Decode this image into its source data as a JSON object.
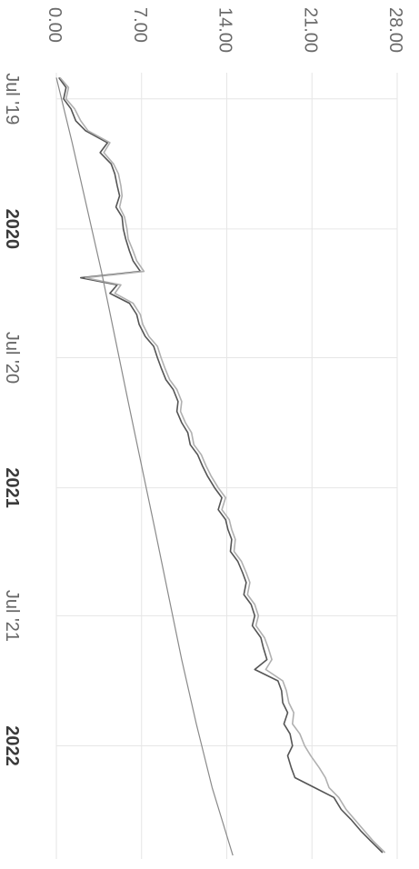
{
  "chart_data": {
    "type": "line",
    "orientation": "rotated-90-clockwise",
    "x_ticks": [
      {
        "date": "2019-07-01",
        "label": "Jul '19",
        "bold": false
      },
      {
        "date": "2020-01-01",
        "label": "2020",
        "bold": true
      },
      {
        "date": "2020-07-01",
        "label": "Jul '20",
        "bold": false
      },
      {
        "date": "2021-01-01",
        "label": "2021",
        "bold": true
      },
      {
        "date": "2021-07-01",
        "label": "Jul '21",
        "bold": false
      },
      {
        "date": "2022-01-01",
        "label": "2022",
        "bold": true
      }
    ],
    "y_ticks": [
      "0.00",
      "7.00",
      "14.00",
      "21.00",
      "28.00"
    ],
    "xlim": [
      "2019-05-25",
      "2022-06-10"
    ],
    "ylim": [
      0,
      28
    ],
    "grid": true,
    "series": [
      {
        "color": "#555555",
        "points": [
          [
            "2019-06-01",
            0.2
          ],
          [
            "2019-06-15",
            0.8
          ],
          [
            "2019-07-01",
            0.6
          ],
          [
            "2019-07-15",
            1.2
          ],
          [
            "2019-08-01",
            1.6
          ],
          [
            "2019-08-15",
            2.4
          ],
          [
            "2019-09-01",
            4.2
          ],
          [
            "2019-09-15",
            3.6
          ],
          [
            "2019-10-01",
            4.5
          ],
          [
            "2019-10-15",
            4.8
          ],
          [
            "2019-11-01",
            5.0
          ],
          [
            "2019-11-15",
            5.2
          ],
          [
            "2019-12-01",
            4.9
          ],
          [
            "2019-12-15",
            5.4
          ],
          [
            "2020-01-01",
            5.5
          ],
          [
            "2020-01-15",
            5.7
          ],
          [
            "2020-02-01",
            6.0
          ],
          [
            "2020-02-15",
            6.3
          ],
          [
            "2020-03-01",
            6.9
          ],
          [
            "2020-03-10",
            2.0
          ],
          [
            "2020-03-20",
            5.0
          ],
          [
            "2020-04-01",
            4.4
          ],
          [
            "2020-04-15",
            6.0
          ],
          [
            "2020-05-01",
            6.6
          ],
          [
            "2020-05-15",
            6.8
          ],
          [
            "2020-06-01",
            7.3
          ],
          [
            "2020-06-15",
            8.0
          ],
          [
            "2020-07-01",
            8.3
          ],
          [
            "2020-07-15",
            8.6
          ],
          [
            "2020-08-01",
            9.0
          ],
          [
            "2020-08-15",
            9.6
          ],
          [
            "2020-09-01",
            10.0
          ],
          [
            "2020-09-15",
            9.9
          ],
          [
            "2020-10-01",
            10.3
          ],
          [
            "2020-10-15",
            10.8
          ],
          [
            "2020-11-01",
            11.0
          ],
          [
            "2020-11-15",
            11.6
          ],
          [
            "2020-12-01",
            12.0
          ],
          [
            "2020-12-15",
            12.4
          ],
          [
            "2021-01-01",
            13.0
          ],
          [
            "2021-01-15",
            13.6
          ],
          [
            "2021-02-01",
            13.3
          ],
          [
            "2021-02-15",
            13.9
          ],
          [
            "2021-03-01",
            14.1
          ],
          [
            "2021-03-15",
            14.4
          ],
          [
            "2021-04-01",
            14.3
          ],
          [
            "2021-04-15",
            14.9
          ],
          [
            "2021-05-01",
            15.3
          ],
          [
            "2021-05-15",
            15.6
          ],
          [
            "2021-06-01",
            15.4
          ],
          [
            "2021-06-15",
            16.0
          ],
          [
            "2021-07-01",
            16.3
          ],
          [
            "2021-07-15",
            16.1
          ],
          [
            "2021-08-01",
            16.8
          ],
          [
            "2021-08-15",
            17.0
          ],
          [
            "2021-09-01",
            17.3
          ],
          [
            "2021-09-15",
            16.3
          ],
          [
            "2021-10-01",
            18.2
          ],
          [
            "2021-10-15",
            18.5
          ],
          [
            "2021-11-01",
            18.6
          ],
          [
            "2021-11-15",
            19.0
          ],
          [
            "2021-12-01",
            18.7
          ],
          [
            "2021-12-15",
            19.2
          ],
          [
            "2022-01-01",
            19.4
          ],
          [
            "2022-01-15",
            19.0
          ],
          [
            "2022-02-01",
            19.3
          ],
          [
            "2022-02-15",
            19.6
          ],
          [
            "2022-03-01",
            21.2
          ],
          [
            "2022-03-15",
            22.8
          ],
          [
            "2022-04-01",
            23.4
          ],
          [
            "2022-04-15",
            24.2
          ],
          [
            "2022-05-01",
            25.0
          ],
          [
            "2022-05-15",
            25.8
          ],
          [
            "2022-06-01",
            26.8
          ]
        ]
      },
      {
        "color": "#b0b0b0",
        "points": [
          [
            "2019-06-01",
            0.3
          ],
          [
            "2019-06-15",
            1.0
          ],
          [
            "2019-07-01",
            0.8
          ],
          [
            "2019-07-15",
            1.5
          ],
          [
            "2019-08-01",
            2.0
          ],
          [
            "2019-08-15",
            2.6
          ],
          [
            "2019-09-01",
            4.4
          ],
          [
            "2019-09-15",
            3.9
          ],
          [
            "2019-10-01",
            4.7
          ],
          [
            "2019-10-15",
            5.1
          ],
          [
            "2019-11-01",
            5.3
          ],
          [
            "2019-11-15",
            5.4
          ],
          [
            "2019-12-01",
            5.2
          ],
          [
            "2019-12-15",
            5.6
          ],
          [
            "2020-01-01",
            5.8
          ],
          [
            "2020-01-15",
            5.9
          ],
          [
            "2020-02-01",
            6.3
          ],
          [
            "2020-02-15",
            6.6
          ],
          [
            "2020-03-01",
            7.2
          ],
          [
            "2020-03-10",
            2.4
          ],
          [
            "2020-03-20",
            5.3
          ],
          [
            "2020-04-01",
            4.8
          ],
          [
            "2020-04-15",
            6.3
          ],
          [
            "2020-05-01",
            6.9
          ],
          [
            "2020-05-15",
            7.1
          ],
          [
            "2020-06-01",
            7.6
          ],
          [
            "2020-06-15",
            8.3
          ],
          [
            "2020-07-01",
            8.6
          ],
          [
            "2020-07-15",
            8.9
          ],
          [
            "2020-08-01",
            9.3
          ],
          [
            "2020-08-15",
            9.9
          ],
          [
            "2020-09-01",
            10.3
          ],
          [
            "2020-09-15",
            10.2
          ],
          [
            "2020-10-01",
            10.6
          ],
          [
            "2020-10-15",
            11.1
          ],
          [
            "2020-11-01",
            11.3
          ],
          [
            "2020-11-15",
            11.9
          ],
          [
            "2020-12-01",
            12.3
          ],
          [
            "2020-12-15",
            12.7
          ],
          [
            "2021-01-01",
            13.3
          ],
          [
            "2021-01-15",
            13.9
          ],
          [
            "2021-02-01",
            13.6
          ],
          [
            "2021-02-15",
            14.2
          ],
          [
            "2021-03-01",
            14.4
          ],
          [
            "2021-03-15",
            14.7
          ],
          [
            "2021-04-01",
            14.6
          ],
          [
            "2021-04-15",
            15.2
          ],
          [
            "2021-05-01",
            15.6
          ],
          [
            "2021-05-15",
            15.9
          ],
          [
            "2021-06-01",
            15.7
          ],
          [
            "2021-06-15",
            16.3
          ],
          [
            "2021-07-01",
            16.6
          ],
          [
            "2021-07-15",
            16.4
          ],
          [
            "2021-08-01",
            17.1
          ],
          [
            "2021-08-15",
            17.4
          ],
          [
            "2021-09-01",
            17.7
          ],
          [
            "2021-09-15",
            17.2
          ],
          [
            "2021-10-01",
            18.6
          ],
          [
            "2021-10-15",
            18.9
          ],
          [
            "2021-11-01",
            19.1
          ],
          [
            "2021-11-15",
            19.5
          ],
          [
            "2021-12-01",
            19.4
          ],
          [
            "2021-12-15",
            20.0
          ],
          [
            "2022-01-01",
            20.4
          ],
          [
            "2022-01-15",
            20.9
          ],
          [
            "2022-02-01",
            21.6
          ],
          [
            "2022-02-15",
            22.1
          ],
          [
            "2022-03-01",
            22.4
          ],
          [
            "2022-03-15",
            23.2
          ],
          [
            "2022-04-01",
            23.8
          ],
          [
            "2022-04-15",
            24.5
          ],
          [
            "2022-05-01",
            25.3
          ],
          [
            "2022-05-15",
            26.0
          ],
          [
            "2022-06-01",
            27.0
          ]
        ]
      },
      {
        "color": "#8a8a8a",
        "points": [
          [
            "2019-06-01",
            0.0
          ],
          [
            "2019-09-01",
            1.3
          ],
          [
            "2019-12-01",
            2.5
          ],
          [
            "2020-03-01",
            3.7
          ],
          [
            "2020-06-01",
            4.8
          ],
          [
            "2020-09-01",
            5.9
          ],
          [
            "2020-12-01",
            7.0
          ],
          [
            "2021-03-01",
            8.1
          ],
          [
            "2021-06-01",
            9.2
          ],
          [
            "2021-09-01",
            10.3
          ],
          [
            "2021-12-01",
            11.5
          ],
          [
            "2022-03-01",
            12.8
          ],
          [
            "2022-06-05",
            14.5
          ]
        ]
      }
    ]
  }
}
